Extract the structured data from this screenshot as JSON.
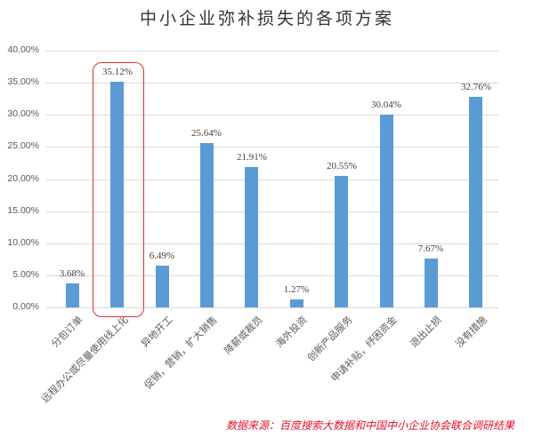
{
  "chart_data": {
    "type": "bar",
    "title": "中小企业弥补损失的各项方案",
    "xlabel": "",
    "ylabel": "",
    "ylim": [
      0,
      40
    ],
    "yticks": [
      "0.00%",
      "5.00%",
      "10.00%",
      "15.00%",
      "20.00%",
      "25.00%",
      "30.00%",
      "35.00%",
      "40.00%"
    ],
    "grid": true,
    "legend": null,
    "categories": [
      "分包订单",
      "远程办公或尽量使用线上化",
      "异地开工",
      "促销，营销，扩大销售",
      "降薪或裁员",
      "海外投资",
      "创新产品服务",
      "申请补贴，纾困资金",
      "退出止损",
      "没有措施"
    ],
    "values": [
      3.68,
      35.12,
      6.49,
      25.64,
      21.91,
      1.27,
      20.55,
      30.04,
      7.67,
      32.76
    ],
    "value_labels": [
      "3.68%",
      "35.12%",
      "6.49%",
      "25.64%",
      "21.91%",
      "1.27%",
      "20.55%",
      "30.04%",
      "7.67%",
      "32.76%"
    ],
    "highlighted_category": "远程办公或尽量使用线上化",
    "bar_color": "#5b9bd5",
    "highlight_color": "#e03030",
    "annotation": "数据来源：百度搜索大数据和中国中小企业协会联合调研结果"
  },
  "source_note": "数据来源：百度搜索大数据和中国中小企业协会联合调研结果"
}
